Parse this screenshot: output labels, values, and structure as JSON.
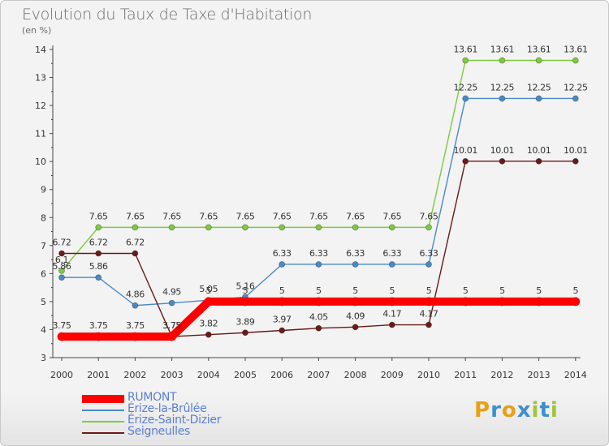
{
  "title": "Evolution du Taux de Taxe d'Habitation",
  "subtitle": "(en %)",
  "logo": {
    "text": [
      "P",
      "r",
      "o",
      "x",
      "i",
      "t",
      "i"
    ],
    "colors": [
      "#e8a015",
      "#3d8fd0",
      "#e8a015",
      "#3d8fd0",
      "#a0c43a",
      "#3d8fd0",
      "#a0c43a"
    ]
  },
  "chart_data": {
    "type": "line",
    "title": "Evolution du Taux de Taxe d'Habitation",
    "ylabel": "(en %)",
    "xlabel": "",
    "x": [
      "2000",
      "2001",
      "2002",
      "2003",
      "2004",
      "2005",
      "2006",
      "2007",
      "2008",
      "2009",
      "2010",
      "2011",
      "2012",
      "2013",
      "2014"
    ],
    "ylim": [
      3,
      14
    ],
    "yticks": [
      "3",
      "4",
      "5",
      "6",
      "7",
      "8",
      "9",
      "10",
      "11",
      "12",
      "13",
      "14"
    ],
    "grid": false,
    "legend_position": "bottom-left",
    "series": [
      {
        "name": "RUMONT",
        "color": "#ff0000",
        "values": [
          3.75,
          3.75,
          3.75,
          3.75,
          5,
          5,
          5,
          5,
          5,
          5,
          5,
          5,
          5,
          5,
          5
        ],
        "labels": [
          "3.75",
          "3.75",
          "3.75",
          "3.75",
          "5",
          "5",
          "5",
          "5",
          "5",
          "5",
          "5",
          "5",
          "5",
          "5",
          "5"
        ]
      },
      {
        "name": "Érize-la-Brûlée",
        "color": "#4a8ac8",
        "values": [
          5.86,
          5.86,
          4.86,
          4.95,
          5.05,
          5.16,
          6.33,
          6.33,
          6.33,
          6.33,
          6.33,
          12.25,
          12.25,
          12.25,
          12.25
        ],
        "labels": [
          "5.86",
          "5.86",
          "4.86",
          "4.95",
          "5.05",
          "5.16",
          "6.33",
          "6.33",
          "6.33",
          "6.33",
          "6.33",
          "12.25",
          "12.25",
          "12.25",
          "12.25"
        ]
      },
      {
        "name": "Érize-Saint-Dizier",
        "color": "#7dcc3c",
        "values": [
          6.1,
          7.65,
          7.65,
          7.65,
          7.65,
          7.65,
          7.65,
          7.65,
          7.65,
          7.65,
          7.65,
          13.61,
          13.61,
          13.61,
          13.61
        ],
        "labels": [
          "6.1",
          "7.65",
          "7.65",
          "7.65",
          "7.65",
          "7.65",
          "7.65",
          "7.65",
          "7.65",
          "7.65",
          "7.65",
          "13.61",
          "13.61",
          "13.61",
          "13.61"
        ]
      },
      {
        "name": "Seigneulles",
        "color": "#6b1a1a",
        "values": [
          6.72,
          6.72,
          6.72,
          3.75,
          3.82,
          3.89,
          3.97,
          4.05,
          4.09,
          4.17,
          4.17,
          10.01,
          10.01,
          10.01,
          10.01
        ],
        "labels": [
          "6.72",
          "6.72",
          "6.72",
          "3.75",
          "3.82",
          "3.89",
          "3.97",
          "4.05",
          "4.09",
          "4.17",
          "4.17",
          "10.01",
          "10.01",
          "10.01",
          "10.01"
        ]
      }
    ]
  }
}
